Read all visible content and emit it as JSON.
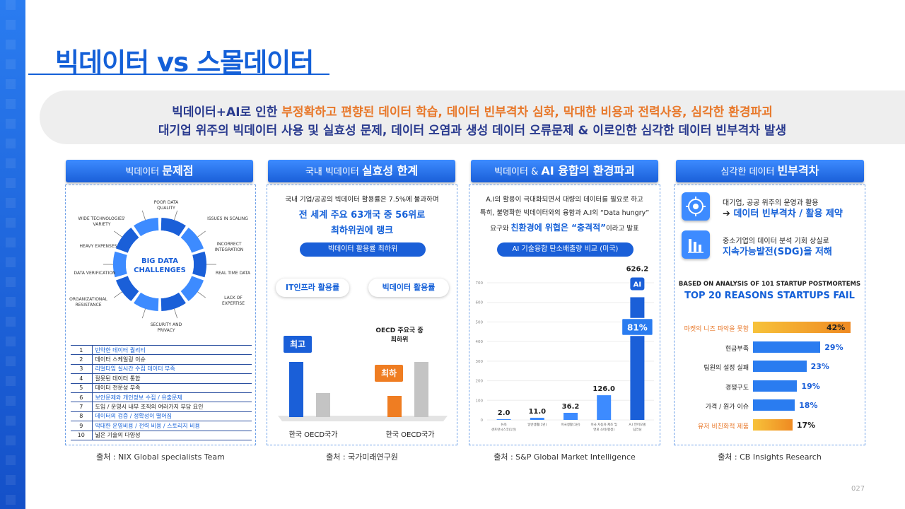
{
  "title": "빅데이터 vs 스몰데이터",
  "banner": {
    "l1_a": "빅데이터+AI로 인한 ",
    "l1_b": "부정확하고 편향된 데이터 학습, 데이터 빈부격차 심화, 막대한 비용과 전력사용, 심각한 환경파괴",
    "l2": "대기업 위주의 빅데이터 사용 및 실효성 문제, 데이터 오염과 생성 데이터 오류문제 & 이로인한 심각한 데이터 빈부격차 발생"
  },
  "panel1": {
    "head_a": "빅데이터 ",
    "head_b": "문제점",
    "center": "BIG DATA\nCHALLENGES",
    "labels": [
      "POOR DATA\nQUALITY",
      "ISSUES IN SCALING",
      "INCORRECT\nINTEGRATION",
      "REAL TIME DATA",
      "LACK OF\nEXPERTISE",
      "SECURITY AND\nPRIVACY",
      "ORGANIZATIONAL\nRESISTANCE",
      "DATA VERIFICATION",
      "HEAVY EXPENSES",
      "WIDE TECHNOLOGIES'\nVARIETY"
    ],
    "rows": [
      {
        "n": "1",
        "t": "빈약한 데이터 퀄리티",
        "hl": true
      },
      {
        "n": "2",
        "t": "데이터 스케일링 이슈",
        "hl": false
      },
      {
        "n": "3",
        "t": "리얼타임 실시간 수집 데이터 부족",
        "hl": true
      },
      {
        "n": "4",
        "t": "잘못된 데이터 통합",
        "hl": false
      },
      {
        "n": "5",
        "t": "데이터 전문성 부족",
        "hl": false
      },
      {
        "n": "6",
        "t": "보안문제와 개인정보 수집 / 유출문제",
        "hl": true
      },
      {
        "n": "7",
        "t": "도입 / 운영시 내부 조직의 여러가지 부담 요인",
        "hl": false
      },
      {
        "n": "8",
        "t": "데이터의 검증 / 정확성이 떨어짐",
        "hl": true
      },
      {
        "n": "9",
        "t": "막대한 운영비용 / 전력 비용 / 스토리지 비용",
        "hl": true
      },
      {
        "n": "10",
        "t": "넓은 기술의 다양성",
        "hl": false
      }
    ],
    "source": "출처 : NIX Global specialists Team"
  },
  "panel2": {
    "head_a": "국내 빅데이터 ",
    "head_b": "실효성 한계",
    "text1": "국내 기업/공공의 빅데이터 활용률은 7.5%에 불과하며",
    "text2": "전 세계 주요 63개국 중 56위로",
    "text3": "최하위권에 랭크",
    "pill": "빅데이터 활용률 최하위",
    "tag1": "IT인프라 활용률",
    "tag2": "빅데이터 활용률",
    "best": "최고",
    "worst": "최하",
    "oecd_note": "OECD 주요국 중\n최하위",
    "x1": "한국 OECD국가",
    "x2": "한국 OECD국가",
    "source": "출처 : 국가미래연구원"
  },
  "panel3": {
    "head_a": "빅데이터 & ",
    "head_b": "AI 융합의 환경파괴",
    "text1": "A.I의 활용이 극대화되면서 대량의 데이터를 필요로 하고",
    "text2": "특히, 불명확한 빅데이터와의 융합과 A.I의 “Data hungry”",
    "text3a": "요구와 ",
    "text3b": "친환경에 위협은 “충격적”",
    "text3c": "이라고 발표",
    "pill": "AI 기술융합 탄소배출량 비교 (미국)",
    "ai_badge": "AI",
    "pct": "81%",
    "yticks": [
      "700",
      "600",
      "500",
      "400",
      "300",
      "200",
      "100",
      "0"
    ],
    "xlabels": [
      "뉴욕\n샌프란시스코(1인)",
      "일반생활(1년)",
      "미국생활(1년)",
      "미국 자동차 제조 및\n연료 소비(평생)",
      "A.I 언어모델\n딥러닝"
    ],
    "source": "출처 : S&P Global Market Intelligence"
  },
  "panel4": {
    "head_a": "심각한 데이터 ",
    "head_b": "빈부격차",
    "item1_a": "대기업, 공공 위주의 운영과 활용",
    "item1_b": "데이터 빈부격차 / 활용 제약",
    "item2_a": "중소기업의 데이터 분석 기회 상실로",
    "item2_b": "지속가능발전(SDG)을 저해",
    "arrow": "➔",
    "sub1": "BASED ON ANALYSIS OF 101 STARTUP POSTMORTEMS",
    "sub2": "TOP 20 REASONS STARTUPS FAIL",
    "source": "출처 : CB Insights Research"
  },
  "chart_data": [
    {
      "type": "bar",
      "title": "AI 기술융합 탄소배출량 비교 (미국)",
      "categories": [
        "뉴욕 샌프란시스코(1인)",
        "일반생활(1년)",
        "미국생활(1년)",
        "미국 자동차 제조 및 연료 소비(평생)",
        "A.I 언어모델 딥러닝"
      ],
      "values": [
        2.0,
        11.0,
        36.2,
        126.0,
        626.2
      ],
      "value_labels": [
        "2.0",
        "11.0",
        "36.2",
        "126.0",
        "626.2"
      ],
      "ylim": [
        0,
        700
      ],
      "colors": {
        "normal": "#3d8bff",
        "highlight": "#1a5fd8"
      }
    },
    {
      "type": "bar",
      "title": "TOP 20 REASONS STARTUPS FAIL",
      "categories": [
        "마켓의 니즈 파악을 못함",
        "현금부족",
        "팀원의 설정 실패",
        "경쟁구도",
        "가격 / 원가 이슈",
        "유저 비친화적 제품"
      ],
      "values": [
        42,
        29,
        23,
        19,
        18,
        17
      ],
      "value_labels": [
        "42%",
        "29%",
        "23%",
        "19%",
        "18%",
        "17%"
      ],
      "highlight": [
        0,
        5
      ],
      "colors": {
        "normal": "#2a7cf0",
        "highlight": "#f5a623"
      }
    }
  ]
}
